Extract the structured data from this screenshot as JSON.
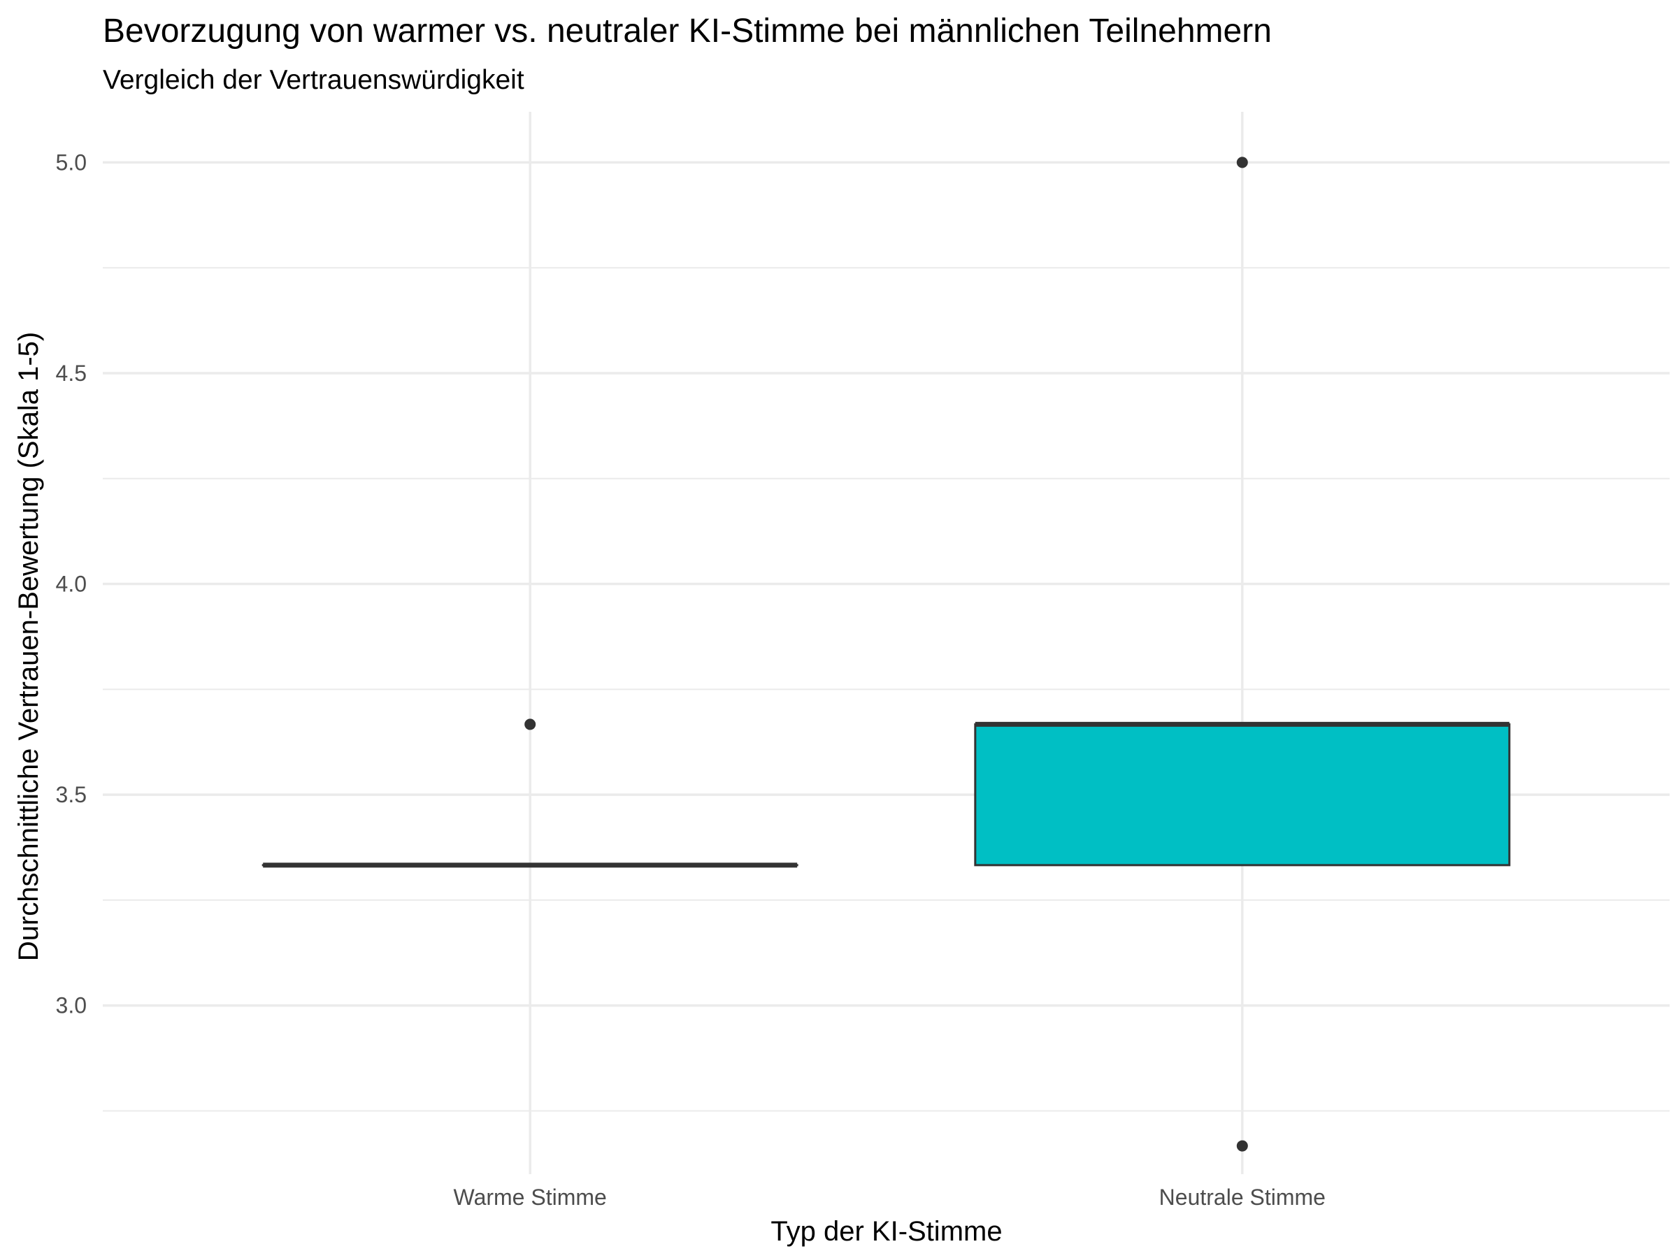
{
  "chart_data": {
    "type": "box",
    "title": "Bevorzugung von warmer vs. neutraler KI-Stimme bei männlichen Teilnehmern",
    "subtitle": "Vergleich der Vertrauenswürdigkeit",
    "xlabel": "Typ der KI-Stimme",
    "ylabel": "Durchschnittliche Vertrauen-Bewertung (Skala 1-5)",
    "categories": [
      "Warme Stimme",
      "Neutrale Stimme"
    ],
    "ylim": [
      2.6,
      5.12
    ],
    "y_ticks": [
      3.0,
      3.5,
      4.0,
      4.5,
      5.0
    ],
    "y_tick_labels": [
      "3.0",
      "3.5",
      "4.0",
      "4.5",
      "5.0"
    ],
    "grid": true,
    "boxes": [
      {
        "category": "Warme Stimme",
        "q1": 3.333,
        "median": 3.333,
        "q3": 3.333,
        "whisker_low": 3.333,
        "whisker_high": 3.333,
        "outliers": [
          3.667
        ],
        "fill": "#F8766D"
      },
      {
        "category": "Neutrale Stimme",
        "q1": 3.333,
        "median": 3.667,
        "q3": 3.667,
        "whisker_low": 3.333,
        "whisker_high": 3.667,
        "outliers": [
          5.0,
          2.667
        ],
        "fill": "#00BFC4"
      }
    ],
    "colors": {
      "box_outline": "#333333",
      "grid": "#ebebeb"
    }
  }
}
